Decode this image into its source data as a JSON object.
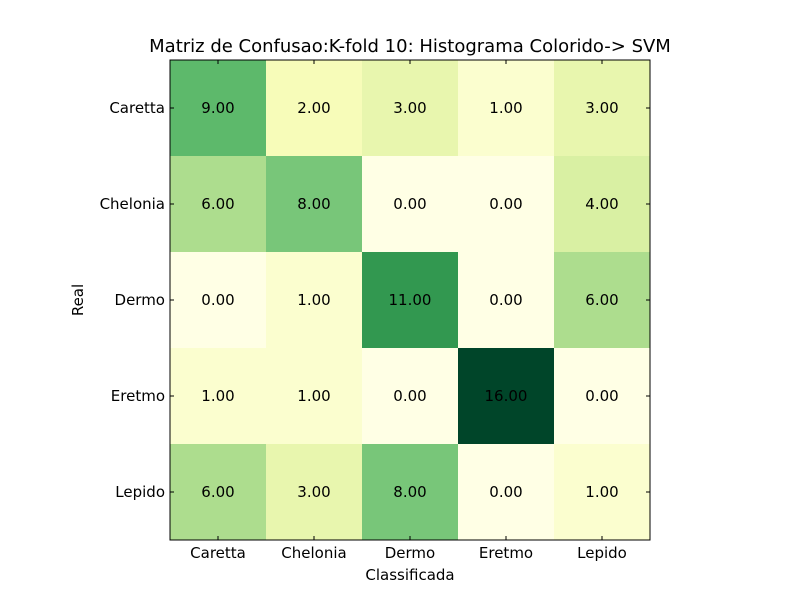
{
  "chart_data": {
    "type": "heatmap",
    "title": "Matriz de Confusao:K-fold 10: Histograma Colorido-> SVM",
    "xlabel": "Classificada",
    "ylabel": "Real",
    "x_categories": [
      "Caretta",
      "Chelonia",
      "Dermo",
      "Eretmo",
      "Lepido"
    ],
    "y_categories": [
      "Caretta",
      "Chelonia",
      "Dermo",
      "Eretmo",
      "Lepido"
    ],
    "values": [
      [
        9,
        2,
        3,
        1,
        3
      ],
      [
        6,
        8,
        0,
        0,
        4
      ],
      [
        0,
        1,
        11,
        0,
        6
      ],
      [
        1,
        1,
        0,
        16,
        0
      ],
      [
        6,
        3,
        8,
        0,
        1
      ]
    ],
    "value_format": "2 decimals",
    "colormap": "YlGn",
    "vmin": 0,
    "vmax": 16,
    "grid": false,
    "colors": [
      "#ffffe5",
      "#f7fcb9",
      "#d9f0a3",
      "#addd8e",
      "#78c679",
      "#41ab5d",
      "#238443",
      "#006837",
      "#004529"
    ]
  }
}
